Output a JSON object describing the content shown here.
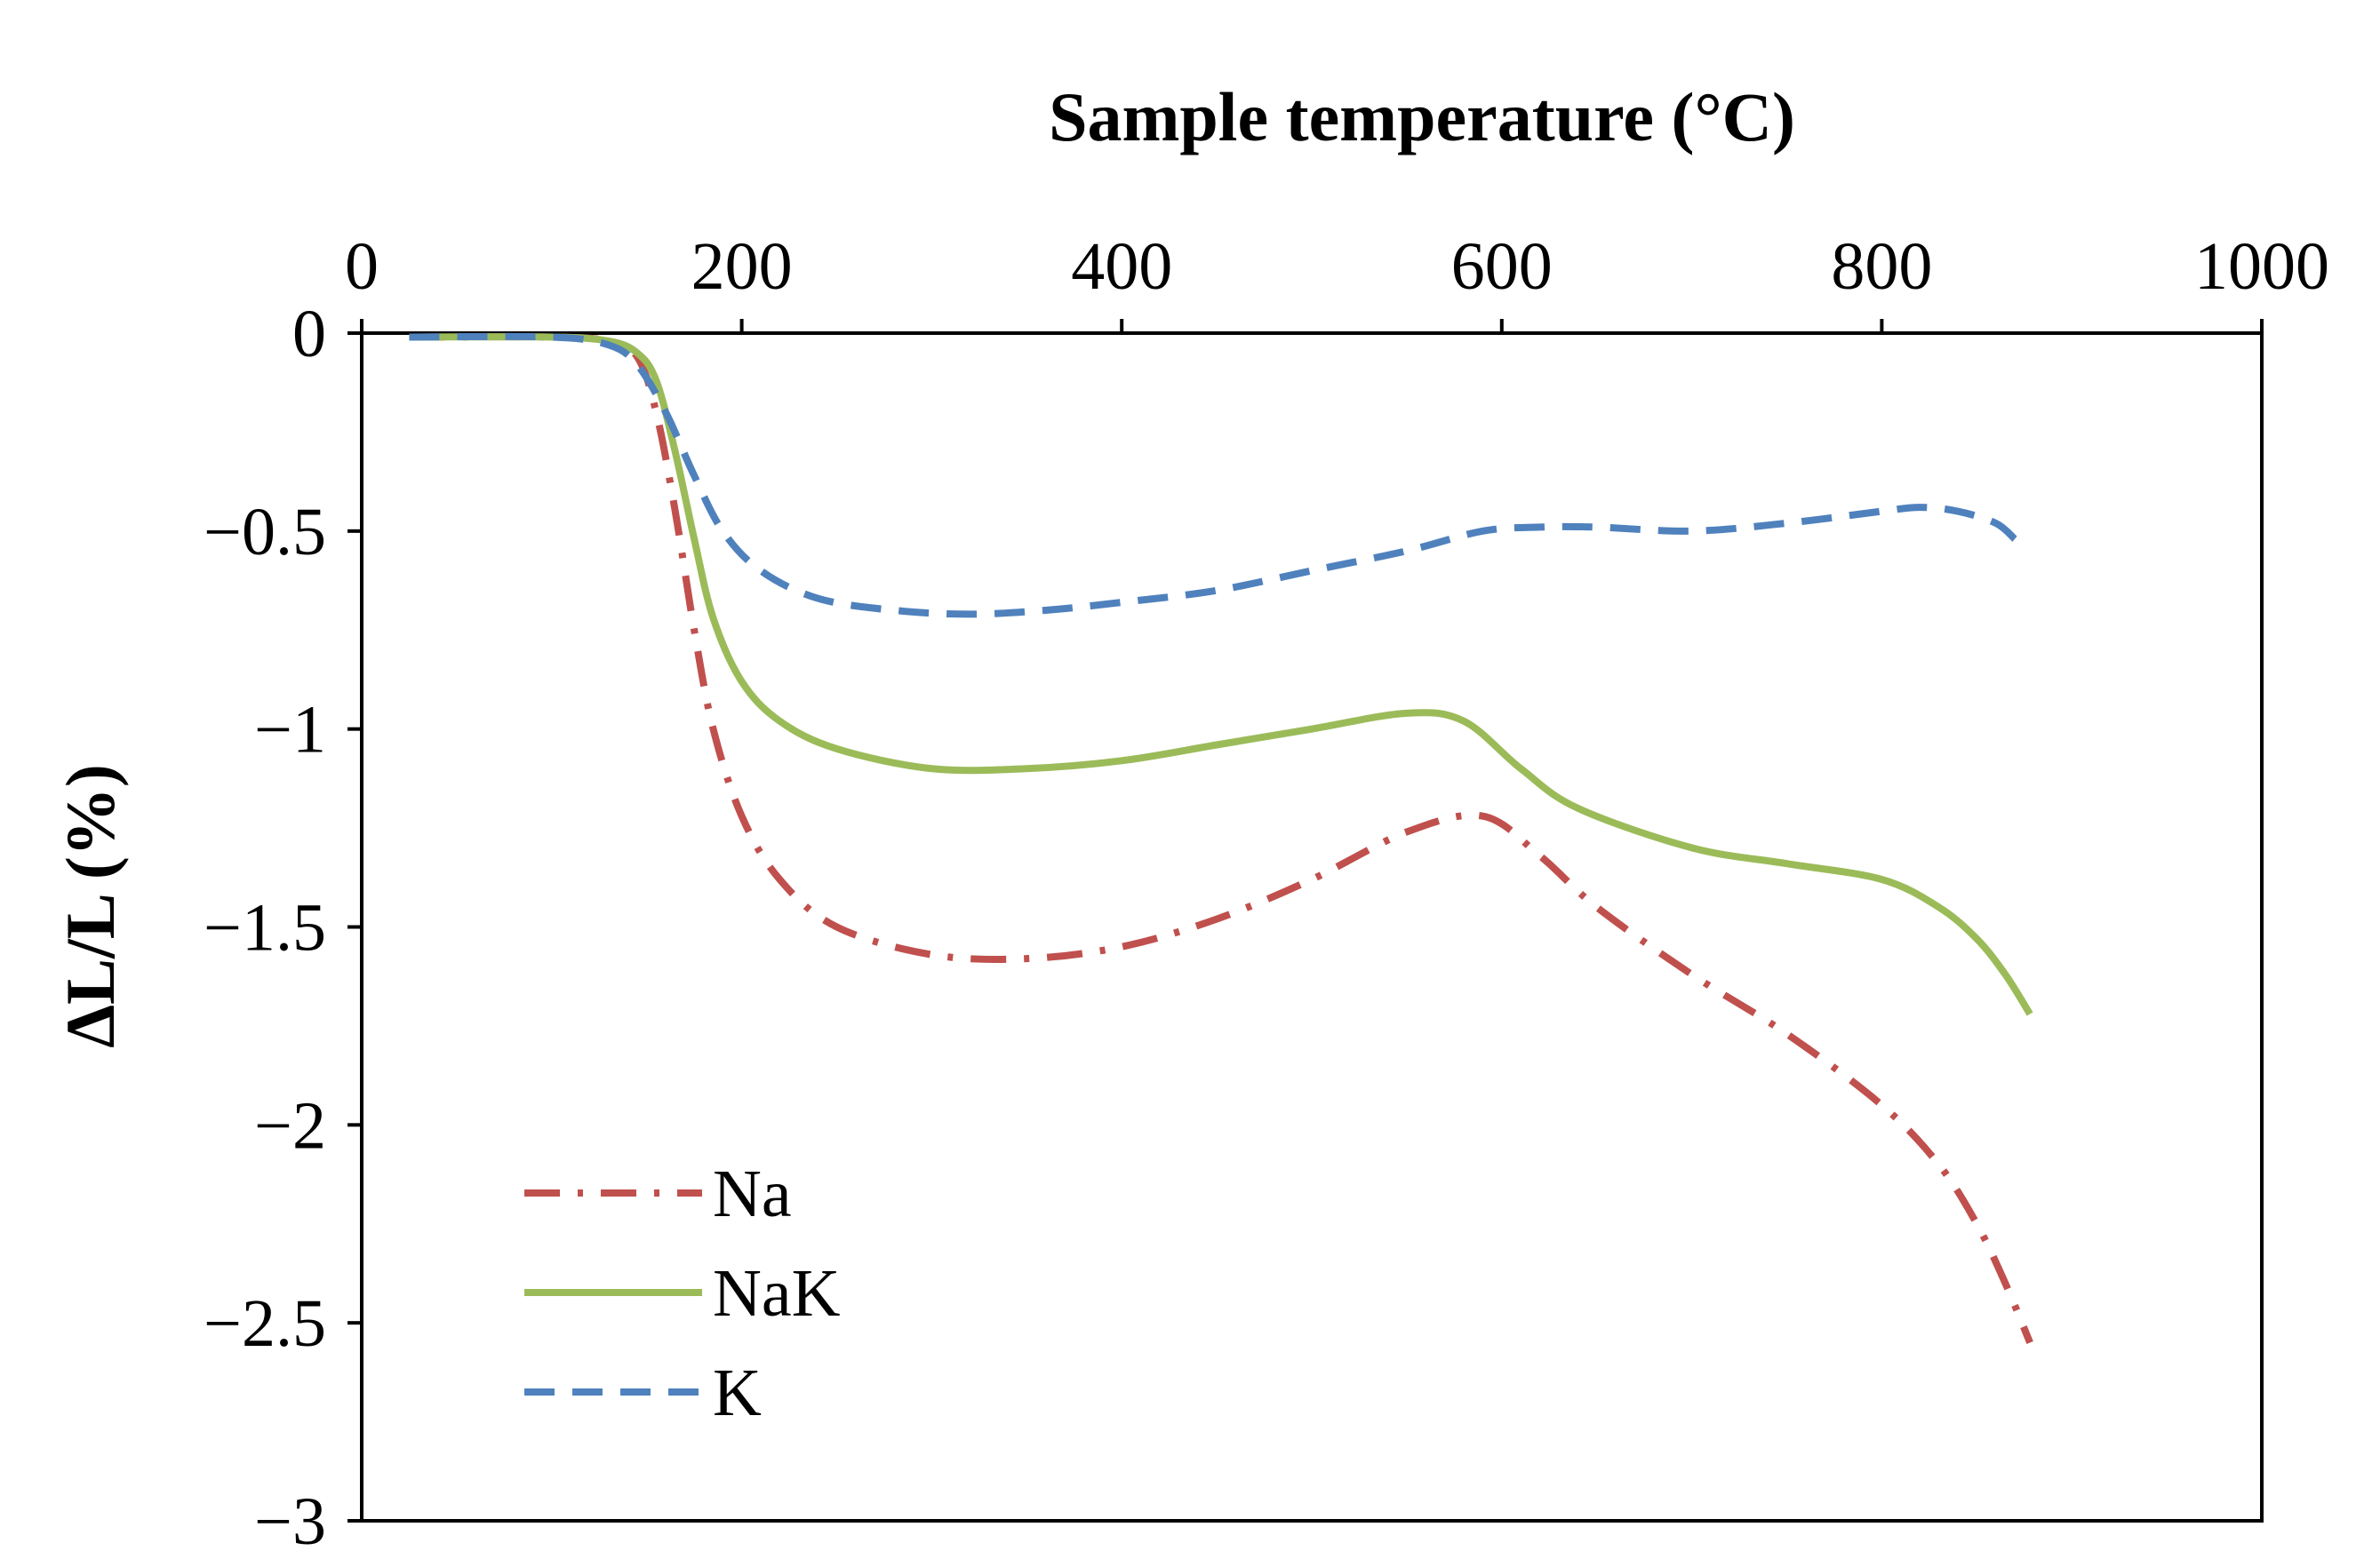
{
  "chart_data": {
    "type": "line",
    "xlabel": "Sample temperature (°C)",
    "ylabel": "ΔL/L (%)",
    "xlim": [
      0,
      1000
    ],
    "ylim": [
      -3,
      0
    ],
    "xticks": [
      0,
      200,
      400,
      600,
      800,
      1000
    ],
    "yticks": [
      0,
      -0.5,
      -1,
      -1.5,
      -2,
      -2.5,
      -3
    ],
    "ytick_labels": [
      "0",
      "−0.5",
      "−1",
      "−1.5",
      "−2",
      "−2.5",
      "−3"
    ],
    "x_axis_position": "top",
    "grid": false,
    "legend_position": "bottom-left",
    "series": [
      {
        "name": "Na",
        "color": "#c0504d",
        "style": "dash-dot",
        "x": [
          25,
          100,
          130,
          145,
          155,
          165,
          175,
          185,
          200,
          220,
          250,
          300,
          350,
          400,
          450,
          500,
          550,
          590,
          620,
          650,
          700,
          750,
          800,
          830,
          850,
          865,
          878
        ],
        "y": [
          -0.01,
          -0.01,
          -0.02,
          -0.06,
          -0.2,
          -0.45,
          -0.75,
          -1.0,
          -1.22,
          -1.38,
          -1.5,
          -1.57,
          -1.58,
          -1.55,
          -1.48,
          -1.38,
          -1.26,
          -1.22,
          -1.32,
          -1.45,
          -1.62,
          -1.77,
          -1.95,
          -2.1,
          -2.25,
          -2.4,
          -2.55
        ]
      },
      {
        "name": "NaK",
        "color": "#9bbb59",
        "style": "solid",
        "x": [
          25,
          100,
          130,
          145,
          155,
          165,
          175,
          185,
          200,
          220,
          250,
          300,
          350,
          400,
          450,
          500,
          550,
          580,
          610,
          640,
          700,
          750,
          800,
          830,
          850,
          865,
          878
        ],
        "y": [
          -0.01,
          -0.01,
          -0.02,
          -0.05,
          -0.12,
          -0.3,
          -0.52,
          -0.72,
          -0.88,
          -0.98,
          -1.05,
          -1.1,
          -1.1,
          -1.08,
          -1.04,
          -1.0,
          -0.96,
          -0.98,
          -1.1,
          -1.2,
          -1.3,
          -1.34,
          -1.38,
          -1.45,
          -1.53,
          -1.62,
          -1.72
        ]
      },
      {
        "name": "K",
        "color": "#4f81bd",
        "style": "dashed",
        "x": [
          25,
          100,
          130,
          145,
          160,
          175,
          190,
          210,
          240,
          280,
          320,
          360,
          400,
          450,
          500,
          550,
          590,
          620,
          650,
          700,
          750,
          800,
          820,
          840,
          860,
          870
        ],
        "y": [
          -0.01,
          -0.01,
          -0.03,
          -0.08,
          -0.2,
          -0.36,
          -0.5,
          -0.6,
          -0.67,
          -0.7,
          -0.71,
          -0.7,
          -0.68,
          -0.65,
          -0.6,
          -0.55,
          -0.5,
          -0.49,
          -0.49,
          -0.5,
          -0.48,
          -0.45,
          -0.44,
          -0.45,
          -0.48,
          -0.52
        ]
      }
    ]
  }
}
